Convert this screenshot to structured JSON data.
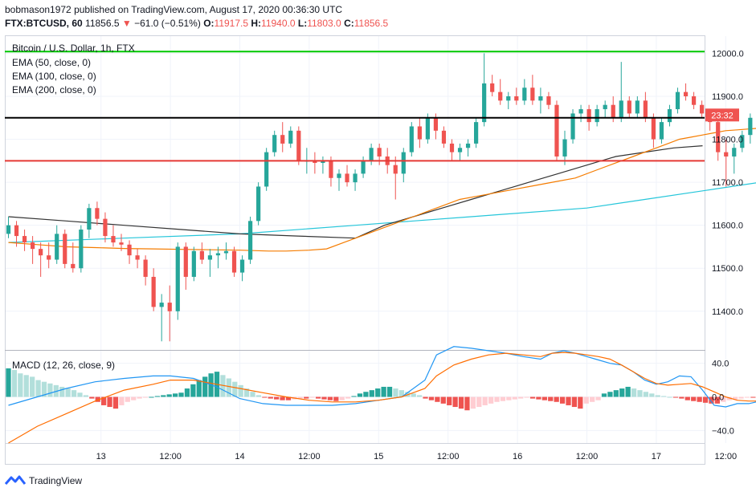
{
  "header": {
    "line1": "bobmason1972 published on TradingView.com, August 17, 2020 00:36:30 UTC",
    "symbol": "FTX:BTCUSD, 60",
    "price": "11856.5",
    "change_arrow": "▼",
    "change": "−61.0 (−0.51%)",
    "o_label": "O:",
    "o_val": "11917.5",
    "h_label": "H:",
    "h_val": "11940.0",
    "l_label": "L:",
    "l_val": "11803.0",
    "c_label": "C:",
    "c_val": "11856.5"
  },
  "legend": {
    "title": "Bitcoin / U.S. Dollar, 1h, FTX",
    "ema50": "EMA (50, close, 0)",
    "ema100": "EMA (100, close, 0)",
    "ema200": "EMA (200, close, 0)"
  },
  "macd_label": "MACD (12, 26, close, 9)",
  "current_price_badge": "23:32",
  "footer_brand": "TradingView",
  "colors": {
    "up": "#26a69a",
    "down": "#ef5350",
    "ema50": "#f57c00",
    "ema100": "#333333",
    "ema200": "#26c6da",
    "green_line": "#00c800",
    "black_line": "#000000",
    "red_line": "#e53935",
    "macd": "#2196f3",
    "signal": "#ff6d00"
  },
  "chart_data": [
    {
      "type": "candlestick",
      "title": "Bitcoin / U.S. Dollar, 1h, FTX",
      "ylim": [
        11310,
        12040
      ],
      "y_ticks": [
        "12000.0",
        "11900.0",
        "11800.0",
        "11700.0",
        "11600.0",
        "11500.0",
        "11400.0"
      ],
      "y_tick_values": [
        12000,
        11900,
        11800,
        11700,
        11600,
        11500,
        11400
      ],
      "x_ticks": [
        "13",
        "12:00",
        "14",
        "12:00",
        "15",
        "12:00",
        "16",
        "12:00",
        "17",
        "12:00"
      ],
      "x_tick_hours": [
        16,
        28,
        40,
        52,
        64,
        76,
        88,
        100,
        112,
        124
      ],
      "horizontal_lines": [
        {
          "name": "green",
          "value": 12004
        },
        {
          "name": "black",
          "value": 11850
        },
        {
          "name": "red",
          "value": 11750
        }
      ],
      "candles": [
        [
          11580,
          11620,
          11570,
          11600
        ],
        [
          11600,
          11610,
          11550,
          11575
        ],
        [
          11575,
          11590,
          11540,
          11560
        ],
        [
          11560,
          11575,
          11510,
          11545
        ],
        [
          11545,
          11560,
          11480,
          11530
        ],
        [
          11530,
          11560,
          11500,
          11520
        ],
        [
          11520,
          11600,
          11510,
          11580
        ],
        [
          11580,
          11590,
          11500,
          11510
        ],
        [
          11510,
          11560,
          11490,
          11500
        ],
        [
          11500,
          11600,
          11490,
          11590
        ],
        [
          11590,
          11650,
          11570,
          11640
        ],
        [
          11640,
          11655,
          11600,
          11615
        ],
        [
          11615,
          11630,
          11560,
          11575
        ],
        [
          11575,
          11600,
          11550,
          11560
        ],
        [
          11560,
          11580,
          11540,
          11555
        ],
        [
          11555,
          11565,
          11510,
          11530
        ],
        [
          11530,
          11545,
          11500,
          11520
        ],
        [
          11520,
          11530,
          11460,
          11480
        ],
        [
          11480,
          11500,
          11400,
          11410
        ],
        [
          11410,
          11440,
          11330,
          11420
        ],
        [
          11420,
          11460,
          11330,
          11400
        ],
        [
          11400,
          11560,
          11380,
          11550
        ],
        [
          11550,
          11560,
          11450,
          11480
        ],
        [
          11480,
          11550,
          11470,
          11540
        ],
        [
          11540,
          11560,
          11510,
          11520
        ],
        [
          11520,
          11545,
          11480,
          11530
        ],
        [
          11530,
          11550,
          11500,
          11535
        ],
        [
          11535,
          11560,
          11520,
          11540
        ],
        [
          11540,
          11550,
          11480,
          11490
        ],
        [
          11490,
          11530,
          11470,
          11520
        ],
        [
          11520,
          11620,
          11510,
          11610
        ],
        [
          11610,
          11700,
          11600,
          11690
        ],
        [
          11690,
          11780,
          11680,
          11770
        ],
        [
          11770,
          11820,
          11760,
          11810
        ],
        [
          11810,
          11840,
          11770,
          11790
        ],
        [
          11790,
          11830,
          11780,
          11820
        ],
        [
          11820,
          11830,
          11740,
          11750
        ],
        [
          11750,
          11780,
          11720,
          11750
        ],
        [
          11750,
          11770,
          11720,
          11745
        ],
        [
          11745,
          11760,
          11720,
          11750
        ],
        [
          11750,
          11760,
          11690,
          11710
        ],
        [
          11710,
          11730,
          11680,
          11720
        ],
        [
          11720,
          11740,
          11690,
          11700
        ],
        [
          11700,
          11730,
          11680,
          11720
        ],
        [
          11720,
          11760,
          11710,
          11750
        ],
        [
          11750,
          11790,
          11740,
          11780
        ],
        [
          11780,
          11790,
          11740,
          11760
        ],
        [
          11760,
          11780,
          11720,
          11740
        ],
        [
          11740,
          11760,
          11660,
          11720
        ],
        [
          11720,
          11780,
          11700,
          11770
        ],
        [
          11770,
          11840,
          11760,
          11830
        ],
        [
          11830,
          11850,
          11780,
          11800
        ],
        [
          11800,
          11860,
          11790,
          11850
        ],
        [
          11850,
          11860,
          11800,
          11820
        ],
        [
          11820,
          11830,
          11780,
          11790
        ],
        [
          11790,
          11800,
          11750,
          11770
        ],
        [
          11770,
          11790,
          11750,
          11780
        ],
        [
          11780,
          11800,
          11760,
          11790
        ],
        [
          11790,
          11850,
          11780,
          11840
        ],
        [
          11840,
          12000,
          11830,
          11930
        ],
        [
          11930,
          11950,
          11900,
          11910
        ],
        [
          11910,
          11940,
          11880,
          11890
        ],
        [
          11890,
          11910,
          11870,
          11900
        ],
        [
          11900,
          11920,
          11880,
          11890
        ],
        [
          11890,
          11940,
          11880,
          11920
        ],
        [
          11920,
          11950,
          11880,
          11890
        ],
        [
          11890,
          11920,
          11860,
          11900
        ],
        [
          11900,
          11910,
          11870,
          11880
        ],
        [
          11880,
          11890,
          11750,
          11760
        ],
        [
          11760,
          11820,
          11740,
          11800
        ],
        [
          11800,
          11870,
          11790,
          11860
        ],
        [
          11860,
          11880,
          11840,
          11870
        ],
        [
          11870,
          11880,
          11820,
          11840
        ],
        [
          11840,
          11880,
          11830,
          11870
        ],
        [
          11870,
          11890,
          11850,
          11880
        ],
        [
          11880,
          11900,
          11840,
          11850
        ],
        [
          11850,
          11980,
          11840,
          11890
        ],
        [
          11890,
          11900,
          11850,
          11860
        ],
        [
          11860,
          11900,
          11850,
          11890
        ],
        [
          11890,
          11910,
          11840,
          11850
        ],
        [
          11850,
          11860,
          11780,
          11800
        ],
        [
          11800,
          11850,
          11790,
          11840
        ],
        [
          11840,
          11880,
          11830,
          11870
        ],
        [
          11870,
          11920,
          11860,
          11910
        ],
        [
          11910,
          11930,
          11890,
          11900
        ],
        [
          11900,
          11910,
          11870,
          11880
        ],
        [
          11880,
          11890,
          11850,
          11860
        ],
        [
          11860,
          11870,
          11820,
          11840
        ],
        [
          11840,
          11860,
          11750,
          11770
        ],
        [
          11770,
          11800,
          11690,
          11760
        ],
        [
          11760,
          11790,
          11720,
          11780
        ],
        [
          11780,
          11820,
          11770,
          11810
        ],
        [
          11810,
          11860,
          11790,
          11850
        ],
        [
          11850,
          11870,
          11830,
          11845
        ],
        [
          11845,
          11860,
          11820,
          11840
        ],
        [
          11840,
          11850,
          11810,
          11830
        ],
        [
          11830,
          11870,
          11820,
          11860
        ],
        [
          11860,
          11890,
          11850,
          11875
        ],
        [
          11875,
          11930,
          11860,
          11920
        ],
        [
          11920,
          11945,
          11800,
          11856.5
        ]
      ],
      "ema50": [
        11560,
        11555,
        11550,
        11548,
        11546,
        11545,
        11544,
        11543,
        11542,
        11540,
        11540,
        11542,
        11545,
        11560,
        11580,
        11600,
        11620,
        11640,
        11660,
        11670,
        11680,
        11690,
        11700,
        11710,
        11730,
        11750,
        11760,
        11770,
        11780,
        11790,
        11800,
        11805,
        11810,
        11815,
        11820,
        11822,
        11824,
        11826,
        11828,
        11830,
        11833,
        11836
      ],
      "ema50_hours": [
        0,
        5,
        10,
        15,
        20,
        25,
        30,
        35,
        40,
        45,
        48,
        52,
        55,
        58,
        62,
        66,
        70,
        74,
        78,
        82,
        86,
        90,
        94,
        98,
        102,
        106,
        108,
        110,
        112,
        114,
        116,
        118,
        120,
        122,
        124,
        126,
        128,
        130,
        132,
        134,
        136,
        138
      ],
      "ema100": [
        11620,
        11610,
        11600,
        11590,
        11580,
        11575,
        11570,
        11600,
        11620,
        11640,
        11660,
        11680,
        11700,
        11720,
        11740,
        11760,
        11770,
        11780,
        11785
      ],
      "ema100_hours": [
        0,
        10,
        20,
        30,
        40,
        50,
        60,
        65,
        70,
        75,
        80,
        85,
        90,
        95,
        100,
        105,
        110,
        115,
        120
      ],
      "ema200": [
        11560,
        11570,
        11580,
        11600,
        11620,
        11640,
        11660,
        11680,
        11700
      ],
      "ema200_hours": [
        0,
        20,
        40,
        60,
        80,
        100,
        110,
        120,
        130
      ]
    },
    {
      "type": "macd",
      "title": "MACD (12, 26, close, 9)",
      "ylim": [
        -55,
        55
      ],
      "y_ticks": [
        "40.0",
        "0.0",
        "−40.0"
      ],
      "y_tick_values": [
        40,
        0,
        -40
      ],
      "hist": [
        34,
        32,
        28,
        26,
        24,
        20,
        18,
        16,
        14,
        12,
        10,
        8,
        5,
        2,
        -2,
        -6,
        -10,
        -12,
        -14,
        -10,
        -6,
        -4,
        -2,
        -1,
        0,
        1,
        2,
        3,
        4,
        5,
        10,
        15,
        20,
        24,
        28,
        30,
        26,
        22,
        18,
        14,
        10,
        6,
        2,
        -1,
        -2,
        -3,
        -4,
        -4,
        -3,
        -2,
        -2,
        -1,
        -2,
        -3,
        -4,
        -5,
        -4,
        -2,
        1,
        4,
        6,
        8,
        10,
        12,
        12,
        10,
        8,
        6,
        4,
        2,
        -2,
        -4,
        -6,
        -8,
        -10,
        -12,
        -14,
        -16,
        -14,
        -12,
        -10,
        -8,
        -6,
        -5,
        -4,
        -3,
        -2,
        -1,
        -2,
        -3,
        -4,
        -5,
        -6,
        -8,
        -10,
        -12,
        -14,
        -8,
        -6,
        -4,
        4,
        6,
        8,
        10,
        12,
        10,
        8,
        6,
        4,
        2,
        1,
        0,
        -1,
        -2,
        -4,
        -5,
        -6,
        -7,
        -8,
        -8,
        -6,
        -4,
        -3,
        -2,
        -1,
        -1,
        0,
        1,
        2,
        4,
        6,
        8,
        10,
        8,
        6
      ],
      "macd_line": [
        -10,
        0,
        10,
        18,
        22,
        25,
        25,
        22,
        12,
        -2,
        -8,
        -10,
        -10,
        -10,
        -8,
        -4,
        0,
        20,
        50,
        60,
        58,
        55,
        52,
        48,
        45,
        52,
        55,
        52,
        48,
        44,
        40,
        38,
        30,
        20,
        15,
        18,
        25,
        24,
        8,
        -10,
        -12,
        -8,
        -8,
        -5,
        0,
        2
      ],
      "macd_hours": [
        0,
        5,
        10,
        15,
        20,
        25,
        28,
        32,
        36,
        40,
        44,
        48,
        52,
        56,
        60,
        64,
        68,
        72,
        74,
        77,
        80,
        83,
        86,
        89,
        92,
        94,
        96,
        98,
        100,
        102,
        104,
        106,
        108,
        110,
        112,
        114,
        116,
        118,
        120,
        122,
        124,
        126,
        128,
        130,
        132,
        134
      ],
      "signal_line": [
        -55,
        -35,
        -20,
        -5,
        8,
        15,
        20,
        20,
        15,
        10,
        5,
        0,
        -4,
        -6,
        -6,
        -4,
        0,
        10,
        25,
        38,
        45,
        50,
        52,
        50,
        48,
        52,
        53,
        52,
        50,
        48,
        45,
        38,
        30,
        22,
        16,
        14,
        15,
        16,
        12,
        6,
        0,
        -4,
        -5,
        -5,
        -2,
        0
      ],
      "signal_hours": [
        0,
        5,
        10,
        15,
        20,
        25,
        28,
        32,
        36,
        40,
        44,
        48,
        52,
        56,
        60,
        64,
        68,
        72,
        74,
        77,
        80,
        83,
        86,
        89,
        92,
        94,
        96,
        98,
        100,
        102,
        104,
        106,
        108,
        110,
        112,
        114,
        116,
        118,
        120,
        122,
        124,
        126,
        128,
        130,
        132,
        134
      ]
    }
  ]
}
